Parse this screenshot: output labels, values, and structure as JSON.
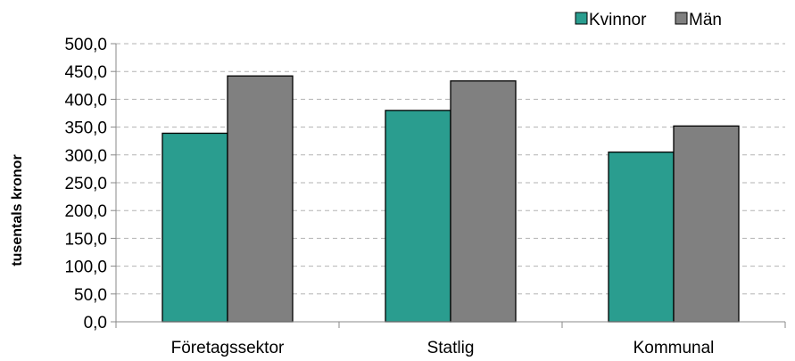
{
  "chart_data": {
    "type": "bar",
    "categories": [
      "Företagssektor",
      "Statlig",
      "Kommunal"
    ],
    "series": [
      {
        "name": "Kvinnor",
        "values": [
          339.0,
          380.0,
          305.0
        ],
        "color": "#2a9d8f"
      },
      {
        "name": "Män",
        "values": [
          442.0,
          433.0,
          352.0
        ],
        "color": "#808080"
      }
    ],
    "ylabel": "tusentals kronor",
    "ylim": [
      0,
      500
    ],
    "yticks": [
      "0,0",
      "50,0",
      "100,0",
      "150,0",
      "200,0",
      "250,0",
      "300,0",
      "350,0",
      "400,0",
      "450,0",
      "500,0"
    ],
    "grid": true,
    "legend_position": "top-right"
  }
}
